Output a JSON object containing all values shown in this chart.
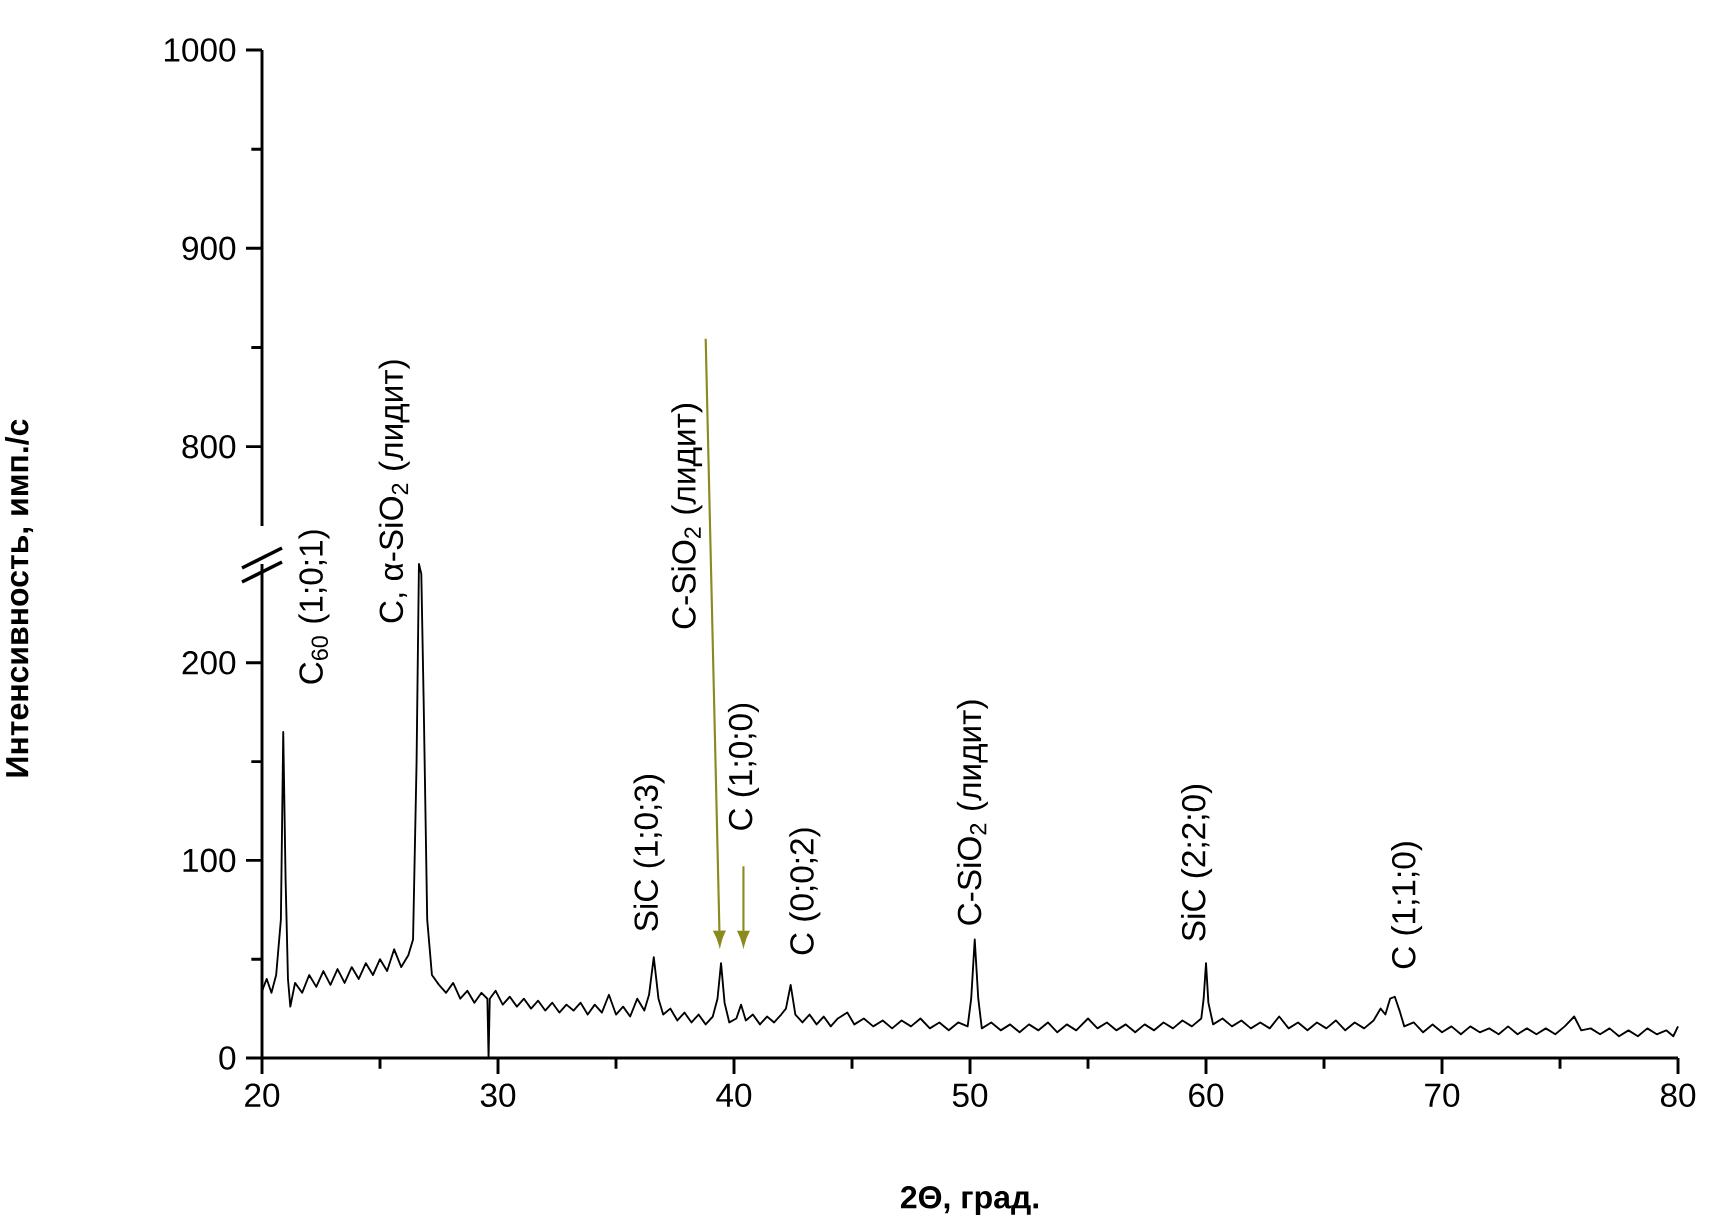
{
  "chart_data": [
    {
      "type": "line",
      "xlim": [
        20,
        80
      ],
      "ylim": [
        760,
        1000
      ],
      "yticks": [
        800,
        900,
        1000
      ],
      "tick_labels": "y"
    },
    {
      "type": "line",
      "xlabel": "2Θ, град.",
      "ylabel": "Интенсивность, имп./с",
      "color": "#000000",
      "marker": "none",
      "xlim": [
        20,
        80
      ],
      "xticks": [
        20,
        30,
        40,
        50,
        60,
        70,
        80
      ],
      "ylim": [
        0,
        250
      ],
      "yticks": [
        0,
        100,
        200
      ],
      "x": [
        20.0,
        20.2,
        20.4,
        20.6,
        20.8,
        20.9,
        21.0,
        21.1,
        21.2,
        21.4,
        21.7,
        22.0,
        22.3,
        22.6,
        22.9,
        23.2,
        23.5,
        23.8,
        24.1,
        24.4,
        24.7,
        25.0,
        25.3,
        25.6,
        25.9,
        26.2,
        26.4,
        26.55,
        26.65,
        26.75,
        26.85,
        27.0,
        27.2,
        27.5,
        27.8,
        28.1,
        28.4,
        28.7,
        29.0,
        29.3,
        29.55,
        29.6,
        29.65,
        29.9,
        30.2,
        30.5,
        30.8,
        31.1,
        31.4,
        31.7,
        32.0,
        32.3,
        32.6,
        32.9,
        33.2,
        33.5,
        33.8,
        34.1,
        34.4,
        34.7,
        35.0,
        35.3,
        35.6,
        35.9,
        36.2,
        36.4,
        36.6,
        36.8,
        37.0,
        37.3,
        37.6,
        37.9,
        38.2,
        38.5,
        38.8,
        39.1,
        39.3,
        39.45,
        39.6,
        39.8,
        40.1,
        40.3,
        40.5,
        40.8,
        41.1,
        41.4,
        41.7,
        42.0,
        42.2,
        42.4,
        42.6,
        42.9,
        43.2,
        43.5,
        43.8,
        44.1,
        44.4,
        44.8,
        45.1,
        45.5,
        45.9,
        46.3,
        46.7,
        47.1,
        47.5,
        47.9,
        48.3,
        48.7,
        49.1,
        49.5,
        49.9,
        50.05,
        50.2,
        50.35,
        50.5,
        50.9,
        51.3,
        51.7,
        52.1,
        52.5,
        52.9,
        53.3,
        53.7,
        54.1,
        54.5,
        55.0,
        55.4,
        55.8,
        56.2,
        56.6,
        57.0,
        57.4,
        57.8,
        58.2,
        58.6,
        59.0,
        59.4,
        59.8,
        59.9,
        60.0,
        60.1,
        60.3,
        60.7,
        61.1,
        61.5,
        61.9,
        62.3,
        62.7,
        63.1,
        63.5,
        63.9,
        64.3,
        64.7,
        65.1,
        65.5,
        65.9,
        66.3,
        66.7,
        67.1,
        67.4,
        67.6,
        67.8,
        68.0,
        68.2,
        68.4,
        68.8,
        69.2,
        69.6,
        70.0,
        70.4,
        70.8,
        71.2,
        71.6,
        72.0,
        72.4,
        72.8,
        73.2,
        73.6,
        74.0,
        74.4,
        74.8,
        75.2,
        75.6,
        75.9,
        76.3,
        76.7,
        77.1,
        77.5,
        77.9,
        78.3,
        78.7,
        79.1,
        79.5,
        79.8,
        80.0
      ],
      "values": [
        34,
        40,
        33,
        42,
        70,
        165,
        90,
        40,
        26,
        38,
        33,
        42,
        36,
        44,
        37,
        45,
        38,
        46,
        40,
        48,
        42,
        50,
        44,
        55,
        46,
        52,
        60,
        150,
        250,
        245,
        180,
        70,
        42,
        37,
        33,
        38,
        30,
        34,
        28,
        33,
        30,
        0,
        30,
        34,
        27,
        31,
        26,
        30,
        25,
        29,
        24,
        28,
        23,
        27,
        24,
        28,
        22,
        27,
        23,
        32,
        22,
        26,
        21,
        30,
        24,
        32,
        51,
        30,
        22,
        25,
        19,
        23,
        18,
        22,
        17,
        21,
        30,
        48,
        28,
        18,
        20,
        27,
        19,
        22,
        17,
        21,
        18,
        22,
        25,
        37,
        22,
        18,
        22,
        17,
        21,
        16,
        20,
        23,
        17,
        20,
        16,
        19,
        15,
        19,
        16,
        20,
        15,
        18,
        14,
        18,
        16,
        30,
        60,
        30,
        15,
        18,
        14,
        17,
        13,
        17,
        14,
        18,
        13,
        17,
        14,
        20,
        15,
        18,
        14,
        17,
        13,
        17,
        14,
        18,
        15,
        19,
        16,
        20,
        30,
        48,
        28,
        17,
        20,
        16,
        19,
        15,
        18,
        15,
        21,
        15,
        18,
        14,
        18,
        15,
        19,
        14,
        18,
        15,
        19,
        25,
        22,
        30,
        31,
        24,
        16,
        18,
        13,
        17,
        13,
        16,
        12,
        16,
        13,
        15,
        12,
        16,
        12,
        15,
        12,
        15,
        12,
        16,
        21,
        14,
        15,
        12,
        15,
        11,
        14,
        11,
        15,
        12,
        14,
        11,
        16
      ],
      "annotations": [
        "C$_{60}$ (1;0;1)",
        "C, α-SiO$_{2}$ (лидит)",
        "SiC (1;0;3)",
        "C-SiO$_{2}$ (лидит)",
        "C (1;0;0)",
        "C (0;0;2)",
        "C-SiO$_{2}$ (лидит)",
        "SiC (2;2;0)",
        "C (1;1;0)"
      ]
    }
  ]
}
